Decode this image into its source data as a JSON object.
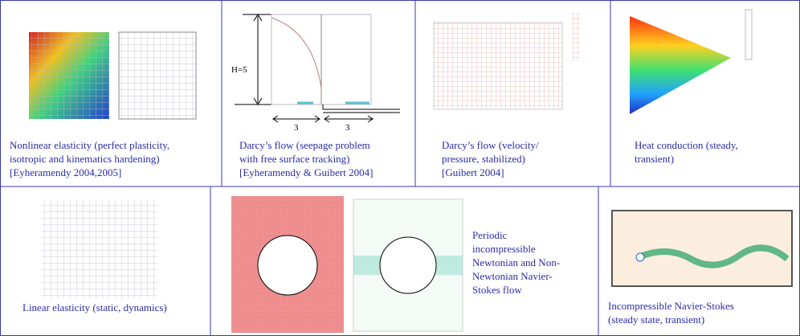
{
  "cells": [
    {
      "caption": [
        "Nonlinear elasticity (perfect plasticity,",
        "isotropic and kinematics hardening)",
        "[Eyheramendy 2004,2005]"
      ]
    },
    {
      "caption": [
        "Darcy’s flow (seepage problem",
        "with free surface tracking)",
        "[Eyheramendy & Guibert 2004]"
      ],
      "height_label": "H=5",
      "width_labels": [
        "3",
        "3"
      ]
    },
    {
      "caption": [
        "Darcy’s flow (velocity/",
        "pressure, stabilized)",
        "[Guibert 2004]"
      ]
    },
    {
      "caption": [
        "Heat conduction (steady,",
        "transient)"
      ]
    },
    {
      "caption": [
        "Linear elasticity (static, dynamics)"
      ]
    },
    {
      "caption": [
        "Periodic",
        "incompressible",
        "Newtonian and Non-",
        "Newtonian Navier-",
        "Stokes flow"
      ]
    },
    {
      "caption": [
        "Incompressible Navier-Stokes",
        "(steady state, transient)"
      ]
    }
  ]
}
